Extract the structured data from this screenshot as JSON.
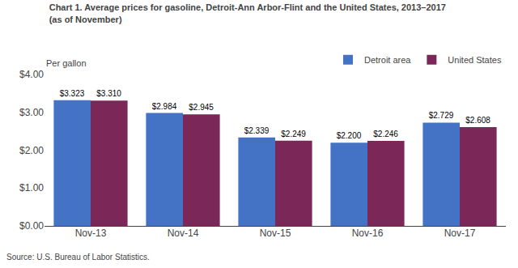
{
  "chart_data": {
    "type": "bar",
    "title": "Chart 1. Average prices for gasoline, Detroit-Ann Arbor-Flint and the United States, 2013–2017",
    "subtitle": "(as of November)",
    "ylabel": "Per gallon",
    "annotations": [
      "Source: U.S. Bureau of Labor Statistics."
    ],
    "categories": [
      "Nov-13",
      "Nov-14",
      "Nov-15",
      "Nov-16",
      "Nov-17"
    ],
    "series": [
      {
        "name": "Detroit area",
        "color": "#4472C4",
        "values": [
          3.323,
          2.984,
          2.339,
          2.2,
          2.729
        ],
        "value_labels": [
          "$3.323",
          "$2.984",
          "$2.339",
          "$2.200",
          "$2.729"
        ]
      },
      {
        "name": "United States",
        "color": "#7B2757",
        "values": [
          3.31,
          2.945,
          2.249,
          2.246,
          2.608
        ],
        "value_labels": [
          "$3.310",
          "$2.945",
          "$2.249",
          "$2.246",
          "$2.608"
        ]
      }
    ],
    "ylim": [
      0,
      4.0
    ],
    "yticks": [
      {
        "value": 0.0,
        "label": "$0.00"
      },
      {
        "value": 1.0,
        "label": "$1.00"
      },
      {
        "value": 2.0,
        "label": "$2.00"
      },
      {
        "value": 3.0,
        "label": "$3.00"
      },
      {
        "value": 4.0,
        "label": "$4.00"
      }
    ],
    "data_labels": true,
    "grid": false,
    "legend": "upper right"
  }
}
